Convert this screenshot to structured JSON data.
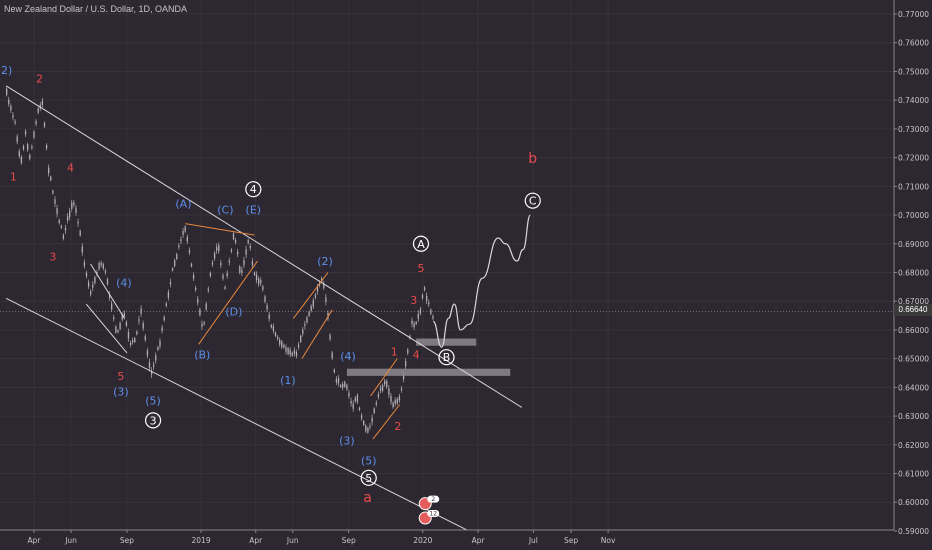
{
  "title": "New Zealand Dollar / U.S. Dollar, 1D, OANDA",
  "current_price": "0.66640",
  "colors": {
    "background": "#2c2730",
    "candles": "#b4b0b6",
    "trendline": "#d9d6db",
    "orange": "#e8883a",
    "blue_labels": "#5d8fe8",
    "red_labels": "#e84b4b",
    "white_labels": "#ffffff",
    "zone": "#8d8a90"
  },
  "chart_data": {
    "type": "candlestick",
    "instrument": "NZDUSD",
    "timeframe": "1D",
    "ylim": [
      0.587,
      0.778
    ],
    "y_ticks": [
      "0.77000",
      "0.76000",
      "0.75000",
      "0.74000",
      "0.73000",
      "0.72000",
      "0.71000",
      "0.70000",
      "0.69000",
      "0.68000",
      "0.67000",
      "0.66000",
      "0.65000",
      "0.64000",
      "0.63000",
      "0.62000",
      "0.61000",
      "0.60000",
      "0.59000"
    ],
    "x_ticks": [
      {
        "label": "Apr",
        "date": "2018-04-01"
      },
      {
        "label": "Jun",
        "date": "2018-06-01"
      },
      {
        "label": "Sep",
        "date": "2018-09-01"
      },
      {
        "label": "2019",
        "date": "2019-01-01"
      },
      {
        "label": "Apr",
        "date": "2019-04-01"
      },
      {
        "label": "Jun",
        "date": "2019-06-01"
      },
      {
        "label": "Sep",
        "date": "2019-09-01"
      },
      {
        "label": "2020",
        "date": "2020-01-01"
      },
      {
        "label": "Apr",
        "date": "2020-04-01"
      },
      {
        "label": "Jul",
        "date": "2020-07-01"
      },
      {
        "label": "Sep",
        "date": "2020-09-01"
      },
      {
        "label": "Nov",
        "date": "2020-11-01"
      }
    ],
    "price_path": [
      {
        "date": "2018-02-14",
        "price": 0.742
      },
      {
        "date": "2018-02-28",
        "price": 0.732
      },
      {
        "date": "2018-03-09",
        "price": 0.718
      },
      {
        "date": "2018-03-17",
        "price": 0.728
      },
      {
        "date": "2018-03-24",
        "price": 0.72
      },
      {
        "date": "2018-04-08",
        "price": 0.737
      },
      {
        "date": "2018-04-14",
        "price": 0.739
      },
      {
        "date": "2018-04-24",
        "price": 0.716
      },
      {
        "date": "2018-05-04",
        "price": 0.705
      },
      {
        "date": "2018-05-18",
        "price": 0.692
      },
      {
        "date": "2018-05-26",
        "price": 0.699
      },
      {
        "date": "2018-06-04",
        "price": 0.704
      },
      {
        "date": "2018-06-11",
        "price": 0.698
      },
      {
        "date": "2018-06-22",
        "price": 0.683
      },
      {
        "date": "2018-07-03",
        "price": 0.672
      },
      {
        "date": "2018-07-17",
        "price": 0.683
      },
      {
        "date": "2018-07-26",
        "price": 0.681
      },
      {
        "date": "2018-08-04",
        "price": 0.67
      },
      {
        "date": "2018-08-15",
        "price": 0.658
      },
      {
        "date": "2018-08-26",
        "price": 0.666
      },
      {
        "date": "2018-09-06",
        "price": 0.655
      },
      {
        "date": "2018-09-14",
        "price": 0.656
      },
      {
        "date": "2018-09-23",
        "price": 0.667
      },
      {
        "date": "2018-10-04",
        "price": 0.651
      },
      {
        "date": "2018-10-10",
        "price": 0.644
      },
      {
        "date": "2018-10-24",
        "price": 0.655
      },
      {
        "date": "2018-11-10",
        "price": 0.676
      },
      {
        "date": "2018-11-17",
        "price": 0.683
      },
      {
        "date": "2018-12-04",
        "price": 0.696
      },
      {
        "date": "2018-12-18",
        "price": 0.679
      },
      {
        "date": "2019-01-03",
        "price": 0.66
      },
      {
        "date": "2019-01-17",
        "price": 0.681
      },
      {
        "date": "2019-01-28",
        "price": 0.69
      },
      {
        "date": "2019-02-08",
        "price": 0.674
      },
      {
        "date": "2019-02-24",
        "price": 0.694
      },
      {
        "date": "2019-03-06",
        "price": 0.678
      },
      {
        "date": "2019-03-20",
        "price": 0.692
      },
      {
        "date": "2019-03-28",
        "price": 0.679
      },
      {
        "date": "2019-04-10",
        "price": 0.676
      },
      {
        "date": "2019-04-24",
        "price": 0.662
      },
      {
        "date": "2019-05-09",
        "price": 0.655
      },
      {
        "date": "2019-05-24",
        "price": 0.652
      },
      {
        "date": "2019-06-05",
        "price": 0.651
      },
      {
        "date": "2019-06-16",
        "price": 0.659
      },
      {
        "date": "2019-06-24",
        "price": 0.664
      },
      {
        "date": "2019-07-09",
        "price": 0.672
      },
      {
        "date": "2019-07-19",
        "price": 0.678
      },
      {
        "date": "2019-07-27",
        "price": 0.666
      },
      {
        "date": "2019-08-05",
        "price": 0.648
      },
      {
        "date": "2019-08-12",
        "price": 0.641
      },
      {
        "date": "2019-08-25",
        "price": 0.641
      },
      {
        "date": "2019-09-06",
        "price": 0.633
      },
      {
        "date": "2019-09-14",
        "price": 0.636
      },
      {
        "date": "2019-09-24",
        "price": 0.627
      },
      {
        "date": "2019-10-02",
        "price": 0.624
      },
      {
        "date": "2019-10-13",
        "price": 0.632
      },
      {
        "date": "2019-10-21",
        "price": 0.638
      },
      {
        "date": "2019-10-31",
        "price": 0.642
      },
      {
        "date": "2019-11-11",
        "price": 0.633
      },
      {
        "date": "2019-11-24",
        "price": 0.637
      },
      {
        "date": "2019-12-05",
        "price": 0.65
      },
      {
        "date": "2019-12-13",
        "price": 0.662
      },
      {
        "date": "2019-12-18",
        "price": 0.66
      },
      {
        "date": "2019-12-27",
        "price": 0.667
      },
      {
        "date": "2020-01-02",
        "price": 0.675
      },
      {
        "date": "2020-01-10",
        "price": 0.668
      },
      {
        "date": "2020-01-18",
        "price": 0.663
      }
    ],
    "projection_path": [
      {
        "date": "2020-01-18",
        "price": 0.663
      },
      {
        "date": "2020-02-01",
        "price": 0.654
      },
      {
        "date": "2020-02-12",
        "price": 0.664
      },
      {
        "date": "2020-02-22",
        "price": 0.669
      },
      {
        "date": "2020-03-03",
        "price": 0.66
      },
      {
        "date": "2020-03-18",
        "price": 0.662
      },
      {
        "date": "2020-04-08",
        "price": 0.678
      },
      {
        "date": "2020-05-04",
        "price": 0.692
      },
      {
        "date": "2020-05-16",
        "price": 0.69
      },
      {
        "date": "2020-06-04",
        "price": 0.684
      },
      {
        "date": "2020-06-14",
        "price": 0.688
      },
      {
        "date": "2020-06-26",
        "price": 0.7
      }
    ],
    "trendlines": [
      {
        "id": "upper-channel",
        "color": "trendline",
        "points": [
          {
            "date": "2018-02-14",
            "price": 0.745
          },
          {
            "date": "2020-06-12",
            "price": 0.633
          }
        ]
      },
      {
        "id": "lower-channel",
        "color": "trendline",
        "points": [
          {
            "date": "2018-02-14",
            "price": 0.671
          },
          {
            "date": "2020-04-14",
            "price": 0.587
          }
        ]
      },
      {
        "id": "wedge-upper",
        "color": "trendline",
        "points": [
          {
            "date": "2018-07-03",
            "price": 0.683
          },
          {
            "date": "2018-08-28",
            "price": 0.664
          }
        ]
      },
      {
        "id": "wedge-lower",
        "color": "trendline",
        "points": [
          {
            "date": "2018-06-26",
            "price": 0.669
          },
          {
            "date": "2018-09-01",
            "price": 0.652
          }
        ]
      },
      {
        "id": "triangle-top",
        "color": "orange",
        "points": [
          {
            "date": "2018-12-06",
            "price": 0.697
          },
          {
            "date": "2019-03-30",
            "price": 0.693
          }
        ]
      },
      {
        "id": "triangle-bottom",
        "color": "orange",
        "points": [
          {
            "date": "2018-12-28",
            "price": 0.655
          },
          {
            "date": "2019-04-04",
            "price": 0.684
          }
        ]
      },
      {
        "id": "flag-upper",
        "color": "orange",
        "points": [
          {
            "date": "2019-06-02",
            "price": 0.664
          },
          {
            "date": "2019-07-29",
            "price": 0.68
          }
        ]
      },
      {
        "id": "flag-lower",
        "color": "orange",
        "points": [
          {
            "date": "2019-06-16",
            "price": 0.65
          },
          {
            "date": "2019-08-05",
            "price": 0.667
          }
        ]
      },
      {
        "id": "channel2-upper",
        "color": "orange",
        "points": [
          {
            "date": "2019-10-07",
            "price": 0.637
          },
          {
            "date": "2019-11-20",
            "price": 0.65
          }
        ]
      },
      {
        "id": "channel2-lower",
        "color": "orange",
        "points": [
          {
            "date": "2019-10-11",
            "price": 0.622
          },
          {
            "date": "2019-11-24",
            "price": 0.634
          }
        ]
      }
    ],
    "zones": [
      {
        "id": "zone-upper",
        "from": "2019-12-21",
        "to": "2020-03-29",
        "top": 0.657,
        "bottom": 0.6545
      },
      {
        "id": "zone-lower",
        "from": "2019-08-29",
        "to": "2020-05-24",
        "top": 0.6465,
        "bottom": 0.644
      }
    ],
    "annotations": [
      {
        "text": "2)",
        "color": "blue_labels",
        "date": "2018-02-15",
        "price": 0.7505
      },
      {
        "text": "2",
        "color": "red_labels",
        "date": "2018-04-10",
        "price": 0.7475
      },
      {
        "text": "1",
        "color": "red_labels",
        "date": "2018-02-26",
        "price": 0.7135
      },
      {
        "text": "4",
        "color": "red_labels",
        "date": "2018-05-31",
        "price": 0.7165
      },
      {
        "text": "3",
        "color": "red_labels",
        "date": "2018-05-02",
        "price": 0.6855
      },
      {
        "text": "(4)",
        "color": "blue_labels",
        "date": "2018-08-27",
        "price": 0.6765
      },
      {
        "text": "5",
        "color": "red_labels",
        "date": "2018-08-22",
        "price": 0.644
      },
      {
        "text": "(3)",
        "color": "blue_labels",
        "date": "2018-08-22",
        "price": 0.6385
      },
      {
        "text": "(5)",
        "color": "blue_labels",
        "date": "2018-10-14",
        "price": 0.6355
      },
      {
        "text": "3",
        "color": "white_circle",
        "date": "2018-10-14",
        "price": 0.6285
      },
      {
        "text": "(A)",
        "color": "blue_labels",
        "date": "2018-12-03",
        "price": 0.704
      },
      {
        "text": "(C)",
        "color": "blue_labels",
        "date": "2019-02-10",
        "price": 0.702
      },
      {
        "text": "4",
        "color": "white_circle",
        "date": "2019-03-28",
        "price": 0.709
      },
      {
        "text": "(E)",
        "color": "blue_labels",
        "date": "2019-03-28",
        "price": 0.702
      },
      {
        "text": "(D)",
        "color": "blue_labels",
        "date": "2019-02-24",
        "price": 0.6665
      },
      {
        "text": "(B)",
        "color": "blue_labels",
        "date": "2019-01-03",
        "price": 0.6515
      },
      {
        "text": "(2)",
        "color": "blue_labels",
        "date": "2019-07-24",
        "price": 0.684
      },
      {
        "text": "(1)",
        "color": "blue_labels",
        "date": "2019-05-24",
        "price": 0.6425
      },
      {
        "text": "(4)",
        "color": "blue_labels",
        "date": "2019-08-31",
        "price": 0.651
      },
      {
        "text": "(3)",
        "color": "blue_labels",
        "date": "2019-08-29",
        "price": 0.6215
      },
      {
        "text": "(5)",
        "color": "blue_labels",
        "date": "2019-10-04",
        "price": 0.6145
      },
      {
        "text": "5",
        "color": "white_circle",
        "date": "2019-10-04",
        "price": 0.6085
      },
      {
        "text": "a",
        "color": "red_labels",
        "date": "2019-10-02",
        "price": 0.6015
      },
      {
        "text": "1",
        "color": "red_labels",
        "date": "2019-11-15",
        "price": 0.6525
      },
      {
        "text": "2",
        "color": "red_labels",
        "date": "2019-11-21",
        "price": 0.6265
      },
      {
        "text": "3",
        "color": "red_labels",
        "date": "2019-12-17",
        "price": 0.6705
      },
      {
        "text": "4",
        "color": "red_labels",
        "date": "2019-12-21",
        "price": 0.6515
      },
      {
        "text": "5",
        "color": "red_labels",
        "date": "2019-12-29",
        "price": 0.6815
      },
      {
        "text": "A",
        "color": "white_circle",
        "date": "2019-12-29",
        "price": 0.69
      },
      {
        "text": "B",
        "color": "white_circle",
        "date": "2020-02-09",
        "price": 0.6505
      },
      {
        "text": "b",
        "color": "red_labels",
        "date": "2020-06-30",
        "price": 0.7195
      },
      {
        "text": "C",
        "color": "white_circle",
        "date": "2020-06-30",
        "price": 0.705
      }
    ],
    "event_markers": [
      {
        "badge": "2",
        "date": "2020-01-05",
        "price": 0.5995
      },
      {
        "badge": "12",
        "date": "2020-01-05",
        "price": 0.5945
      }
    ]
  }
}
